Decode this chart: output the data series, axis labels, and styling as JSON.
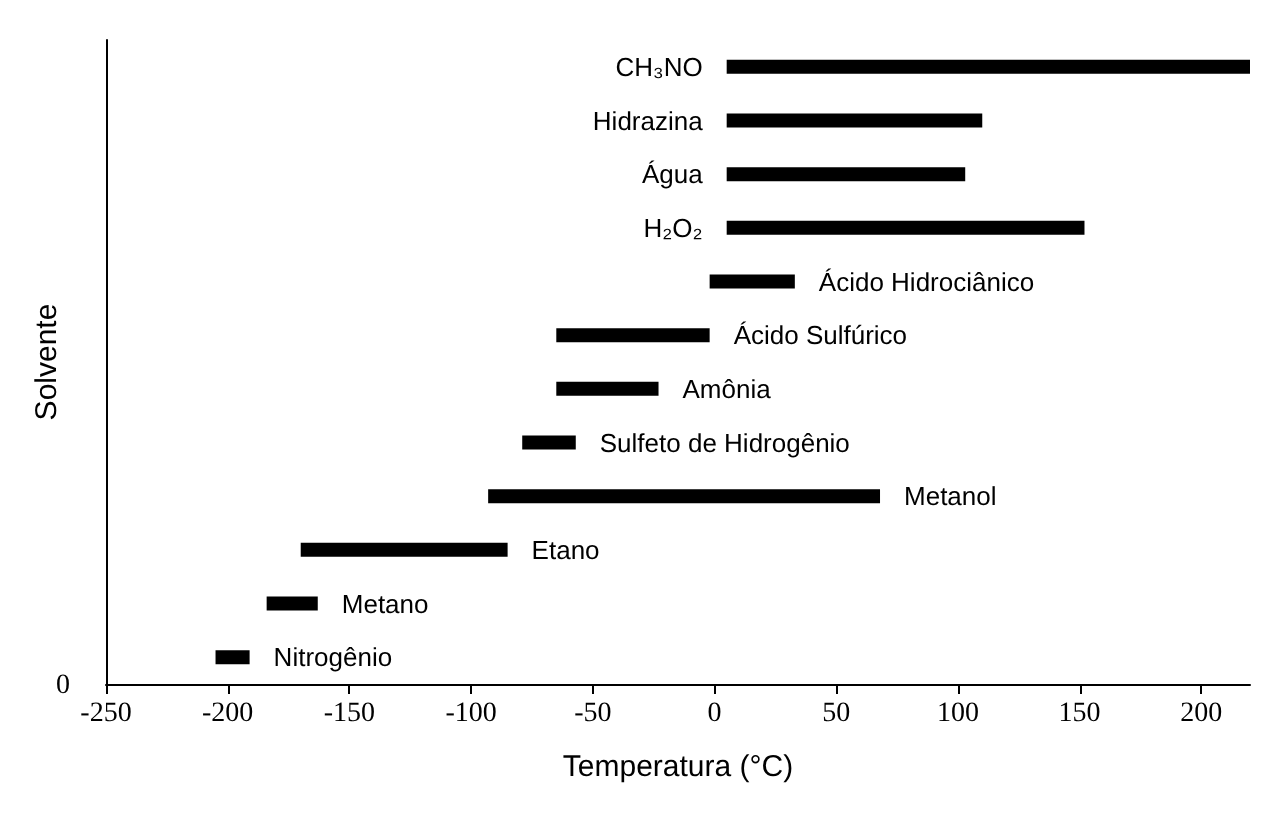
{
  "chart_data": {
    "type": "bar",
    "orientation": "horizontal",
    "xlabel": "Temperatura (°C)",
    "ylabel": "Solvente",
    "annotations": [
      "0"
    ],
    "categories": [
      "CH₃NO",
      "Hidrazina",
      "Água",
      "H₂O₂",
      "Ácido Hidrociânico",
      "Ácido Sulfúrico",
      "Amônia",
      "Sulfeto de Hidrogênio",
      "Metanol",
      "Etano",
      "Metano",
      "Nitrogênio"
    ],
    "base": [
      5,
      5,
      5,
      5,
      -2,
      -65,
      -65,
      -79,
      -93,
      -170,
      -184,
      -205
    ],
    "values": [
      215,
      105,
      98,
      147,
      35,
      63,
      42,
      22,
      161,
      85,
      21,
      14
    ],
    "color": "#000000",
    "xlim": [
      -250,
      220
    ],
    "xticks": [
      -250,
      -200,
      -150,
      -100,
      -50,
      0,
      50,
      100,
      150,
      200
    ]
  }
}
